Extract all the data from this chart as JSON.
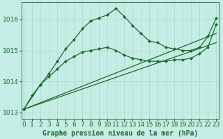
{
  "bg_color": "#c6ece6",
  "grid_color": "#a8d8d0",
  "line_color": "#1a6b2a",
  "label_color": "#1a6b2a",
  "title": "Graphe pression niveau de la mer (hPa)",
  "title_fontsize": 7.0,
  "tick_fontsize": 6.5,
  "ylim": [
    1012.8,
    1016.55
  ],
  "xlim": [
    -0.3,
    23.3
  ],
  "yticks": [
    1013,
    1014,
    1015,
    1016
  ],
  "xticks": [
    0,
    1,
    2,
    3,
    4,
    5,
    6,
    7,
    8,
    9,
    10,
    11,
    12,
    13,
    14,
    15,
    16,
    17,
    18,
    19,
    20,
    21,
    22,
    23
  ],
  "series": [
    {
      "x": [
        0,
        1,
        2,
        3,
        4,
        5,
        6,
        7,
        8,
        9,
        10,
        11,
        12,
        13,
        14,
        15,
        16,
        17,
        18,
        19,
        20,
        21,
        22,
        23
      ],
      "y": [
        1013.1,
        1013.55,
        1013.9,
        1014.25,
        1014.65,
        1015.05,
        1015.35,
        1015.7,
        1015.95,
        1016.05,
        1016.15,
        1016.35,
        1016.1,
        1015.8,
        1015.55,
        1015.3,
        1015.25,
        1015.1,
        1015.05,
        1015.0,
        1015.0,
        1015.1,
        1015.45,
        1016.05
      ],
      "has_markers": true
    },
    {
      "x": [
        0,
        2,
        3,
        4,
        5,
        6,
        7,
        8,
        9,
        10,
        11,
        12,
        13,
        14,
        15,
        16,
        17,
        18,
        19,
        20,
        21,
        22,
        23
      ],
      "y": [
        1013.1,
        1013.9,
        1014.15,
        1014.4,
        1014.65,
        1014.8,
        1014.95,
        1015.0,
        1015.05,
        1015.1,
        1015.0,
        1014.85,
        1014.75,
        1014.7,
        1014.65,
        1014.65,
        1014.65,
        1014.7,
        1014.7,
        1014.75,
        1014.9,
        1015.1,
        1015.85
      ],
      "has_markers": true
    },
    {
      "x": [
        0,
        23
      ],
      "y": [
        1013.1,
        1015.55
      ],
      "has_markers": false
    },
    {
      "x": [
        0,
        23
      ],
      "y": [
        1013.1,
        1015.25
      ],
      "has_markers": false
    }
  ],
  "marker": "D",
  "marker_size": 2.2,
  "linewidth": 0.9
}
